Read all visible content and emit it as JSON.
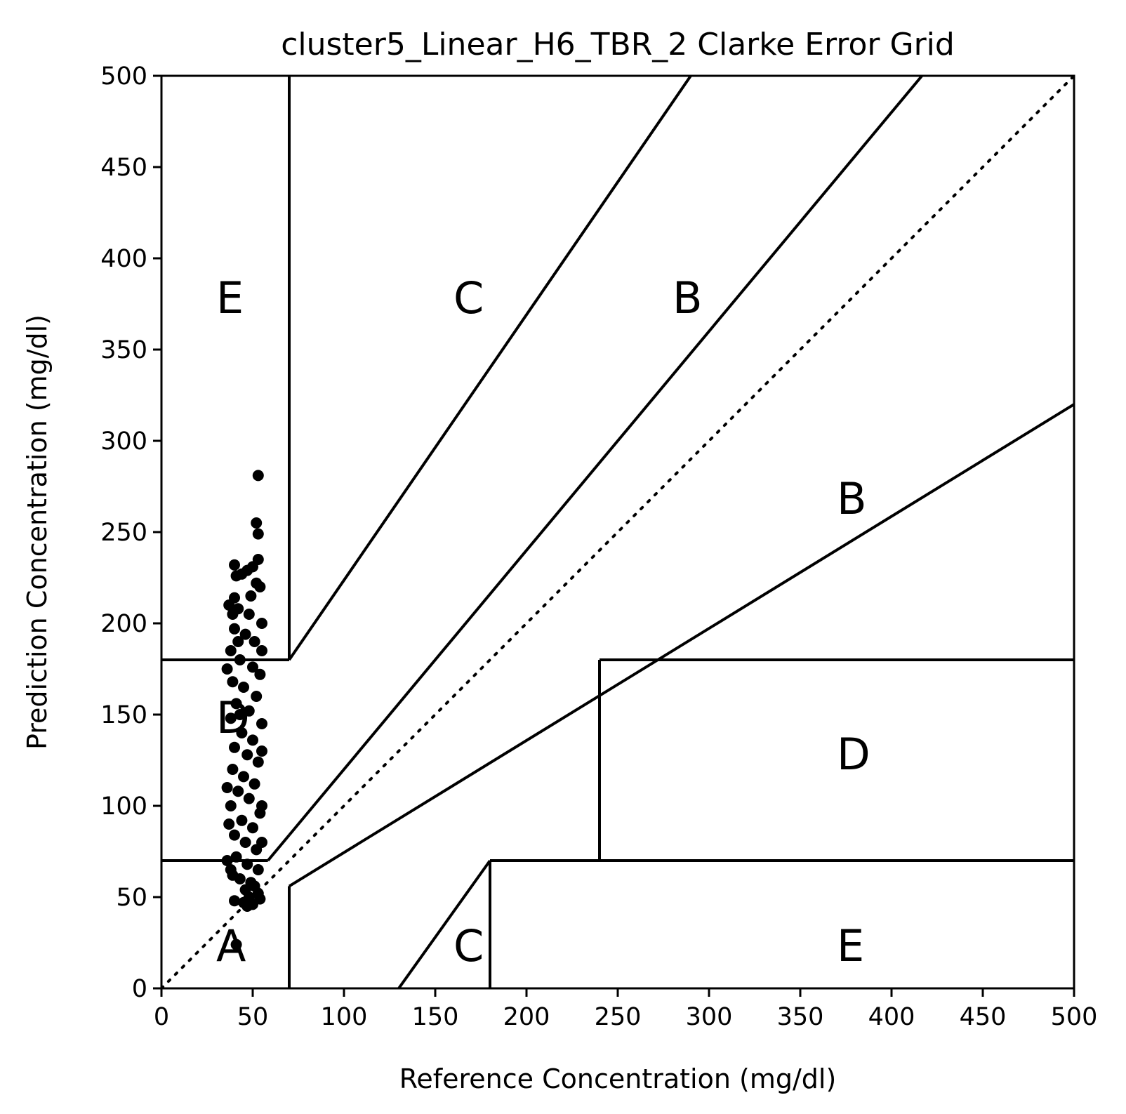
{
  "chart_data": {
    "type": "scatter",
    "title": "cluster5_Linear_H6_TBR_2 Clarke Error Grid",
    "xlabel": "Reference Concentration (mg/dl)",
    "ylabel": "Prediction Concentration (mg/dl)",
    "xlim": [
      0,
      500
    ],
    "ylim": [
      0,
      500
    ],
    "xticks": [
      0,
      50,
      100,
      150,
      200,
      250,
      300,
      350,
      400,
      450,
      500
    ],
    "yticks": [
      0,
      50,
      100,
      150,
      200,
      250,
      300,
      350,
      400,
      450,
      500
    ],
    "x_tick_labels": [
      "0",
      "50",
      "100",
      "150",
      "200",
      "250",
      "300",
      "350",
      "400",
      "450",
      "500"
    ],
    "y_tick_labels": [
      "0",
      "50",
      "100",
      "150",
      "200",
      "250",
      "300",
      "350",
      "400",
      "450",
      "500"
    ],
    "grid": false,
    "legend": "none",
    "point_color": "#000000",
    "reference_line": {
      "style": "dotted",
      "from": [
        0,
        0
      ],
      "to": [
        500,
        500
      ]
    },
    "zone_boundaries": [
      {
        "from": [
          70,
          0
        ],
        "to": [
          70,
          56
        ]
      },
      {
        "from": [
          70,
          56
        ],
        "to": [
          500,
          320
        ]
      },
      {
        "from": [
          70,
          84
        ],
        "to": [
          416.67,
          500
        ]
      },
      {
        "from": [
          58.33,
          70
        ],
        "to": [
          70,
          84
        ]
      },
      {
        "from": [
          70,
          180
        ],
        "to": [
          70,
          500
        ]
      },
      {
        "from": [
          70,
          180
        ],
        "to": [
          290,
          500
        ]
      },
      {
        "from": [
          0,
          70
        ],
        "to": [
          58.33,
          70
        ]
      },
      {
        "from": [
          0,
          180
        ],
        "to": [
          70,
          180
        ]
      },
      {
        "from": [
          130,
          0
        ],
        "to": [
          180,
          70
        ]
      },
      {
        "from": [
          180,
          70
        ],
        "to": [
          180,
          0
        ]
      },
      {
        "from": [
          180,
          70
        ],
        "to": [
          500,
          70
        ]
      },
      {
        "from": [
          240,
          70
        ],
        "to": [
          240,
          180
        ]
      },
      {
        "from": [
          240,
          180
        ],
        "to": [
          500,
          180
        ]
      }
    ],
    "zone_labels": [
      {
        "text": "A",
        "x": 30,
        "y": 15
      },
      {
        "text": "B",
        "x": 370,
        "y": 260
      },
      {
        "text": "B",
        "x": 280,
        "y": 370
      },
      {
        "text": "C",
        "x": 160,
        "y": 370
      },
      {
        "text": "C",
        "x": 160,
        "y": 15
      },
      {
        "text": "D",
        "x": 30,
        "y": 140
      },
      {
        "text": "D",
        "x": 370,
        "y": 120
      },
      {
        "text": "E",
        "x": 30,
        "y": 370
      },
      {
        "text": "E",
        "x": 370,
        "y": 15
      }
    ],
    "points": [
      {
        "x": 53,
        "y": 281
      },
      {
        "x": 52,
        "y": 255
      },
      {
        "x": 53,
        "y": 249
      },
      {
        "x": 53,
        "y": 235
      },
      {
        "x": 40,
        "y": 232
      },
      {
        "x": 50,
        "y": 231
      },
      {
        "x": 47,
        "y": 229
      },
      {
        "x": 41,
        "y": 226
      },
      {
        "x": 44,
        "y": 227
      },
      {
        "x": 52,
        "y": 222
      },
      {
        "x": 54,
        "y": 220
      },
      {
        "x": 40,
        "y": 214
      },
      {
        "x": 42,
        "y": 208
      },
      {
        "x": 39,
        "y": 205
      },
      {
        "x": 48,
        "y": 205
      },
      {
        "x": 55,
        "y": 200
      },
      {
        "x": 40,
        "y": 197
      },
      {
        "x": 46,
        "y": 194
      },
      {
        "x": 51,
        "y": 190
      },
      {
        "x": 38,
        "y": 185
      },
      {
        "x": 43,
        "y": 180
      },
      {
        "x": 50,
        "y": 176
      },
      {
        "x": 54,
        "y": 172
      },
      {
        "x": 39,
        "y": 168
      },
      {
        "x": 45,
        "y": 165
      },
      {
        "x": 52,
        "y": 160
      },
      {
        "x": 41,
        "y": 156
      },
      {
        "x": 48,
        "y": 152
      },
      {
        "x": 38,
        "y": 148
      },
      {
        "x": 55,
        "y": 145
      },
      {
        "x": 44,
        "y": 140
      },
      {
        "x": 50,
        "y": 136
      },
      {
        "x": 40,
        "y": 132
      },
      {
        "x": 47,
        "y": 128
      },
      {
        "x": 53,
        "y": 124
      },
      {
        "x": 39,
        "y": 120
      },
      {
        "x": 45,
        "y": 116
      },
      {
        "x": 51,
        "y": 112
      },
      {
        "x": 42,
        "y": 108
      },
      {
        "x": 48,
        "y": 104
      },
      {
        "x": 38,
        "y": 100
      },
      {
        "x": 54,
        "y": 96
      },
      {
        "x": 44,
        "y": 92
      },
      {
        "x": 50,
        "y": 88
      },
      {
        "x": 40,
        "y": 84
      },
      {
        "x": 46,
        "y": 80
      },
      {
        "x": 52,
        "y": 76
      },
      {
        "x": 41,
        "y": 72
      },
      {
        "x": 47,
        "y": 68
      },
      {
        "x": 53,
        "y": 65
      },
      {
        "x": 39,
        "y": 62
      },
      {
        "x": 43,
        "y": 60
      },
      {
        "x": 49,
        "y": 58
      },
      {
        "x": 51,
        "y": 56
      },
      {
        "x": 46,
        "y": 54
      },
      {
        "x": 53,
        "y": 52
      },
      {
        "x": 48,
        "y": 50
      },
      {
        "x": 54,
        "y": 49
      },
      {
        "x": 40,
        "y": 48
      },
      {
        "x": 45,
        "y": 47
      },
      {
        "x": 47,
        "y": 45
      },
      {
        "x": 50,
        "y": 46
      },
      {
        "x": 41,
        "y": 24
      },
      {
        "x": 37,
        "y": 210
      },
      {
        "x": 42,
        "y": 190
      },
      {
        "x": 49,
        "y": 215
      },
      {
        "x": 36,
        "y": 175
      },
      {
        "x": 55,
        "y": 185
      },
      {
        "x": 43,
        "y": 150
      },
      {
        "x": 36,
        "y": 110
      },
      {
        "x": 55,
        "y": 130
      },
      {
        "x": 37,
        "y": 90
      },
      {
        "x": 55,
        "y": 100
      },
      {
        "x": 36,
        "y": 70
      },
      {
        "x": 55,
        "y": 80
      },
      {
        "x": 38,
        "y": 65
      }
    ]
  }
}
